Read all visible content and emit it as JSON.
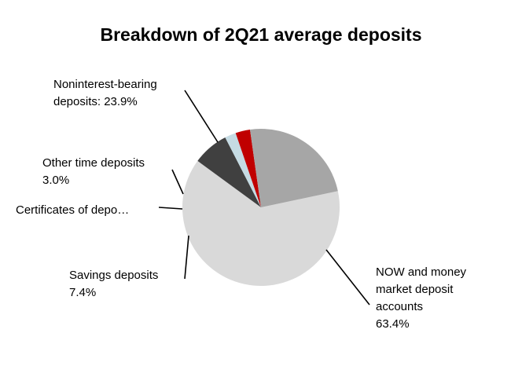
{
  "chart_data": {
    "type": "pie",
    "title": "Breakdown of 2Q21 average deposits",
    "start_angle_deg": 78,
    "direction": "clockwise",
    "slices": [
      {
        "id": "now-money-market",
        "value": 63.4,
        "label_lines": [
          "NOW and money",
          "market deposit",
          "accounts",
          "63.4%"
        ],
        "color": "#d9d9d9"
      },
      {
        "id": "savings",
        "value": 7.4,
        "label_lines": [
          "Savings deposits",
          "7.4%"
        ],
        "color": "#404040"
      },
      {
        "id": "certificates",
        "value": 2.3,
        "label_lines": [
          "Certificates of depo…"
        ],
        "color": "#c5dbe3"
      },
      {
        "id": "other-time",
        "value": 3.0,
        "label_lines": [
          "Other time deposits",
          "3.0%"
        ],
        "color": "#c00000"
      },
      {
        "id": "noninterest-bearing",
        "value": 23.9,
        "label_lines": [
          "Noninterest-bearing",
          "deposits: 23.9%"
        ],
        "color": "#a6a6a6"
      }
    ]
  }
}
